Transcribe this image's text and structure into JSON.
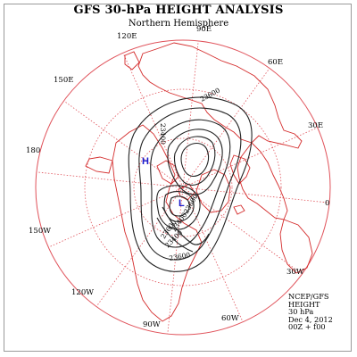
{
  "header": {
    "title": "GFS 30-hPa HEIGHT ANALYSIS",
    "subtitle": "Northern Hemisphere"
  },
  "longitude_labels": [
    "90E",
    "60E",
    "30E",
    "0",
    "30W",
    "60W",
    "90W",
    "120W",
    "150W",
    "180",
    "150E",
    "120E"
  ],
  "contour_labels": [
    "23600",
    "23400",
    "23600",
    "23400",
    "23600",
    "23400",
    "23600"
  ],
  "centers": {
    "high": "H",
    "low": "L"
  },
  "info": {
    "line1": "NCEP/GFS",
    "line2": "HEIGHT",
    "line3": "30 hPa",
    "line4": "Dec 4, 2012",
    "line5": "00Z + f00"
  },
  "colors": {
    "graticule": "#e0525a",
    "coastline": "#d42b2b",
    "contour": "#222222",
    "center_marker": "#1a1acc"
  }
}
